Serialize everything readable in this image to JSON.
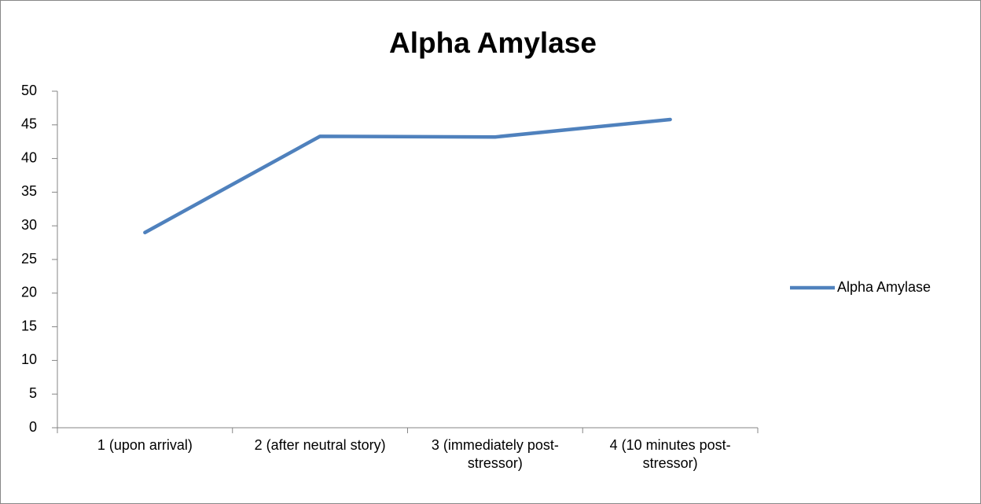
{
  "chart_data": {
    "type": "line",
    "title": "Alpha Amylase",
    "categories": [
      "1 (upon arrival)",
      "2 (after neutral story)",
      "3 (immediately post-stressor)",
      "4 (10 minutes post-stressor)"
    ],
    "series": [
      {
        "name": "Alpha Amylase",
        "color": "#4f81bd",
        "values": [
          29,
          43.3,
          43.2,
          45.8
        ]
      }
    ],
    "ylim": [
      0,
      50
    ],
    "yticks": [
      0,
      5,
      10,
      15,
      20,
      25,
      30,
      35,
      40,
      45,
      50
    ],
    "grid": false,
    "legend": "right"
  }
}
